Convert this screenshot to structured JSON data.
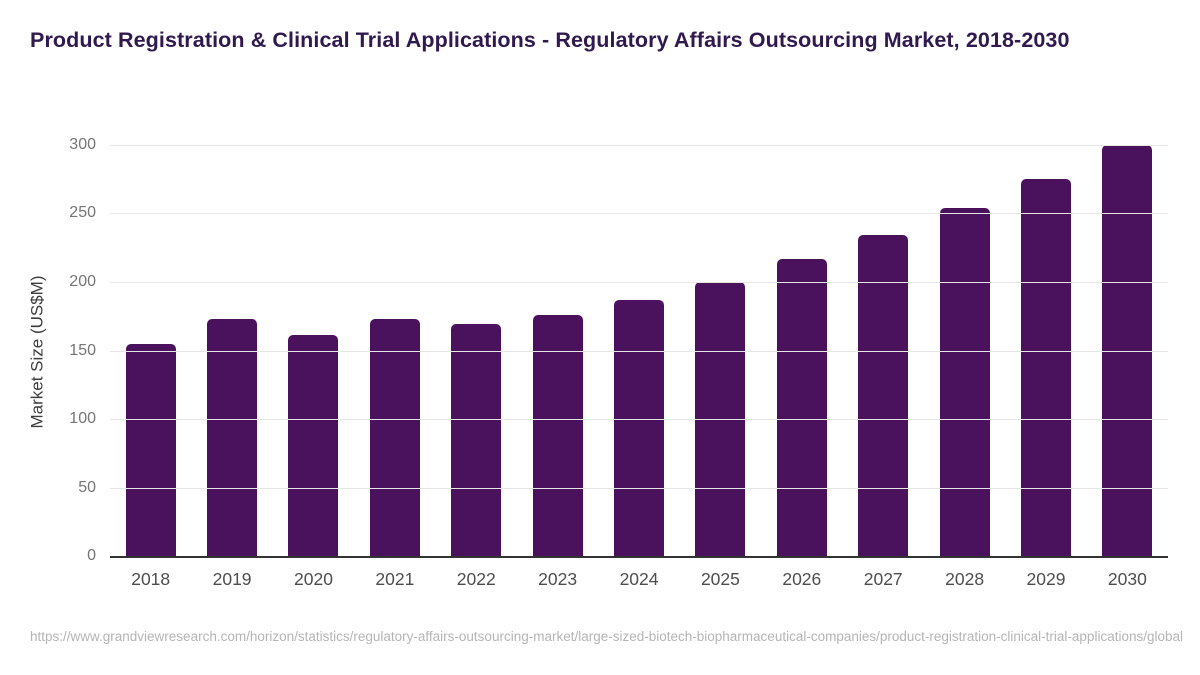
{
  "header": {
    "title": "Product Registration & Clinical Trial Applications - Regulatory Affairs Outsourcing Market, 2018-2030"
  },
  "chart_data": {
    "type": "bar",
    "title": "Product Registration & Clinical Trial Applications - Regulatory Affairs Outsourcing Market, 2018-2030",
    "categories": [
      "2018",
      "2019",
      "2020",
      "2021",
      "2022",
      "2023",
      "2024",
      "2025",
      "2026",
      "2027",
      "2028",
      "2029",
      "2030"
    ],
    "values": [
      155,
      173,
      161,
      173,
      169,
      176,
      187,
      200,
      217,
      234,
      254,
      275,
      300
    ],
    "xlabel": "",
    "ylabel": "Market Size (US$M)",
    "ylim": [
      0,
      300
    ],
    "ytick_step": 50,
    "grid": "horizontal",
    "legend": "none",
    "bar_color": "#4a115c"
  },
  "colors": {
    "title": "#30194e",
    "bar": "#4a115c",
    "gridline": "#e6e6e6",
    "axis_line": "#333333",
    "x_tick_label": "#4d4d4d",
    "y_tick_label": "#757575",
    "footer_text": "#b5b5b5",
    "background": "#ffffff"
  },
  "footer": {
    "source_url": "https://www.grandviewresearch.com/horizon/statistics/regulatory-affairs-outsourcing-market/large-sized-biotech-biopharmaceutical-companies/product-registration-clinical-trial-applications/global"
  }
}
